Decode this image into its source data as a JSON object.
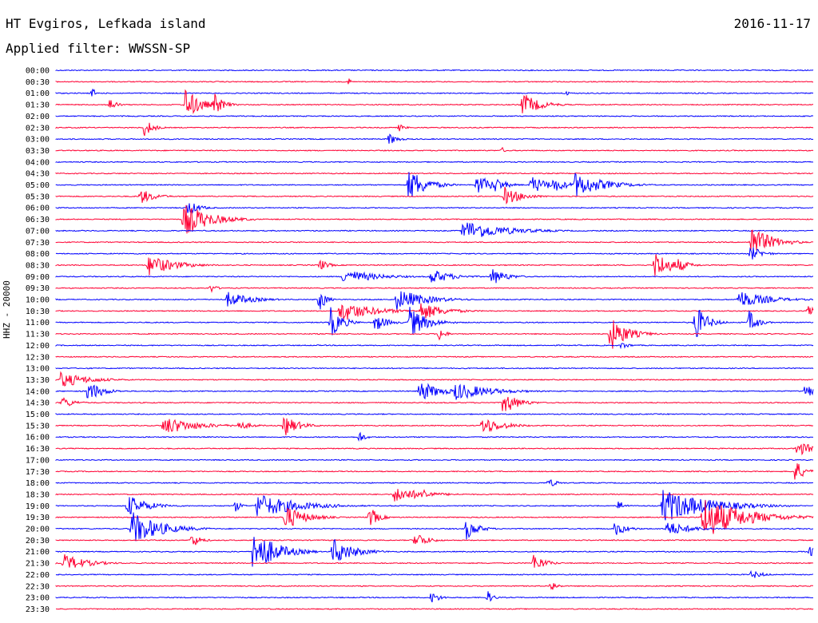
{
  "header": {
    "station": "HT Evgiros, Lefkada island",
    "date": "2016-11-17",
    "filter": "Applied filter: WWSSN-SP"
  },
  "chart_data": {
    "type": "line",
    "title": "HT Evgiros, Lefkada island",
    "subtitle": "Applied filter: WWSSN-SP",
    "date": "2016-11-17",
    "ylabel": "HHZ - 20000",
    "trace_colors": [
      "#0000ff",
      "#ff0033"
    ],
    "grid": false,
    "row_labels": [
      "00:00",
      "00:30",
      "01:00",
      "01:30",
      "02:00",
      "02:30",
      "03:00",
      "03:30",
      "04:00",
      "04:30",
      "05:00",
      "05:30",
      "06:00",
      "06:30",
      "07:00",
      "07:30",
      "08:00",
      "08:30",
      "09:00",
      "09:30",
      "10:00",
      "10:30",
      "11:00",
      "11:30",
      "12:00",
      "12:30",
      "13:00",
      "13:30",
      "14:00",
      "14:30",
      "15:00",
      "15:30",
      "16:00",
      "16:30",
      "17:00",
      "17:30",
      "18:00",
      "18:30",
      "19:00",
      "19:30",
      "20:00",
      "20:30",
      "21:00",
      "21:30",
      "22:00",
      "22:30",
      "23:00",
      "23:30"
    ],
    "events": [
      [
        10,
        540,
        3,
        1
      ],
      [
        1,
        437,
        5,
        1
      ],
      [
        2,
        116,
        8,
        1
      ],
      [
        2,
        708,
        5,
        1
      ],
      [
        3,
        138,
        10,
        2
      ],
      [
        3,
        232,
        22,
        5
      ],
      [
        3,
        269,
        15,
        3
      ],
      [
        3,
        653,
        16,
        6
      ],
      [
        5,
        181,
        12,
        3
      ],
      [
        5,
        500,
        5,
        2
      ],
      [
        6,
        487,
        8,
        3
      ],
      [
        7,
        629,
        4,
        1
      ],
      [
        10,
        512,
        22,
        6
      ],
      [
        10,
        597,
        13,
        6
      ],
      [
        10,
        620,
        10,
        4
      ],
      [
        10,
        665,
        12,
        6
      ],
      [
        10,
        720,
        16,
        10
      ],
      [
        10,
        692,
        10,
        5
      ],
      [
        11,
        176,
        10,
        5
      ],
      [
        11,
        632,
        12,
        6
      ],
      [
        12,
        235,
        10,
        4
      ],
      [
        13,
        230,
        22,
        9
      ],
      [
        14,
        580,
        14,
        14
      ],
      [
        15,
        940,
        22,
        7
      ],
      [
        16,
        940,
        10,
        4
      ],
      [
        17,
        186,
        14,
        9
      ],
      [
        17,
        400,
        8,
        3
      ],
      [
        17,
        820,
        18,
        6
      ],
      [
        17,
        847,
        10,
        4
      ],
      [
        18,
        430,
        10,
        11
      ],
      [
        18,
        540,
        10,
        7
      ],
      [
        18,
        615,
        12,
        5
      ],
      [
        19,
        264,
        6,
        2
      ],
      [
        20,
        285,
        10,
        8
      ],
      [
        20,
        497,
        14,
        10
      ],
      [
        20,
        400,
        18,
        2
      ],
      [
        20,
        925,
        12,
        10
      ],
      [
        21,
        426,
        14,
        11
      ],
      [
        21,
        527,
        12,
        8
      ],
      [
        21,
        1012,
        6,
        4
      ],
      [
        22,
        414,
        20,
        4
      ],
      [
        22,
        470,
        12,
        4
      ],
      [
        22,
        513,
        20,
        6
      ],
      [
        22,
        870,
        25,
        4
      ],
      [
        22,
        938,
        15,
        3
      ],
      [
        23,
        764,
        22,
        6
      ],
      [
        23,
        550,
        10,
        2
      ],
      [
        24,
        778,
        5,
        3
      ],
      [
        27,
        76,
        10,
        10
      ],
      [
        28,
        110,
        14,
        5
      ],
      [
        28,
        525,
        14,
        7
      ],
      [
        28,
        569,
        12,
        12
      ],
      [
        28,
        1008,
        10,
        4
      ],
      [
        29,
        630,
        16,
        5
      ],
      [
        29,
        78,
        8,
        4
      ],
      [
        31,
        205,
        12,
        11
      ],
      [
        31,
        298,
        6,
        5
      ],
      [
        31,
        356,
        14,
        5
      ],
      [
        31,
        604,
        12,
        7
      ],
      [
        32,
        450,
        8,
        2
      ],
      [
        33,
        998,
        10,
        6
      ],
      [
        35,
        995,
        16,
        3
      ],
      [
        36,
        687,
        6,
        3
      ],
      [
        37,
        531,
        8,
        3
      ],
      [
        37,
        494,
        10,
        10
      ],
      [
        38,
        295,
        8,
        2
      ],
      [
        38,
        160,
        14,
        7
      ],
      [
        38,
        322,
        16,
        14
      ],
      [
        38,
        830,
        22,
        16
      ],
      [
        38,
        775,
        8,
        2
      ],
      [
        39,
        357,
        16,
        7
      ],
      [
        39,
        463,
        14,
        3
      ],
      [
        39,
        880,
        28,
        14
      ],
      [
        40,
        165,
        22,
        10
      ],
      [
        40,
        584,
        14,
        4
      ],
      [
        40,
        770,
        10,
        4
      ],
      [
        40,
        835,
        10,
        8
      ],
      [
        41,
        240,
        10,
        3
      ],
      [
        41,
        520,
        12,
        4
      ],
      [
        42,
        317,
        30,
        8
      ],
      [
        42,
        417,
        18,
        7
      ],
      [
        42,
        1014,
        6,
        4
      ],
      [
        43,
        79,
        12,
        8
      ],
      [
        43,
        668,
        12,
        4
      ],
      [
        44,
        941,
        6,
        4
      ],
      [
        45,
        690,
        8,
        2
      ],
      [
        46,
        540,
        8,
        3
      ],
      [
        46,
        611,
        8,
        2
      ]
    ]
  }
}
